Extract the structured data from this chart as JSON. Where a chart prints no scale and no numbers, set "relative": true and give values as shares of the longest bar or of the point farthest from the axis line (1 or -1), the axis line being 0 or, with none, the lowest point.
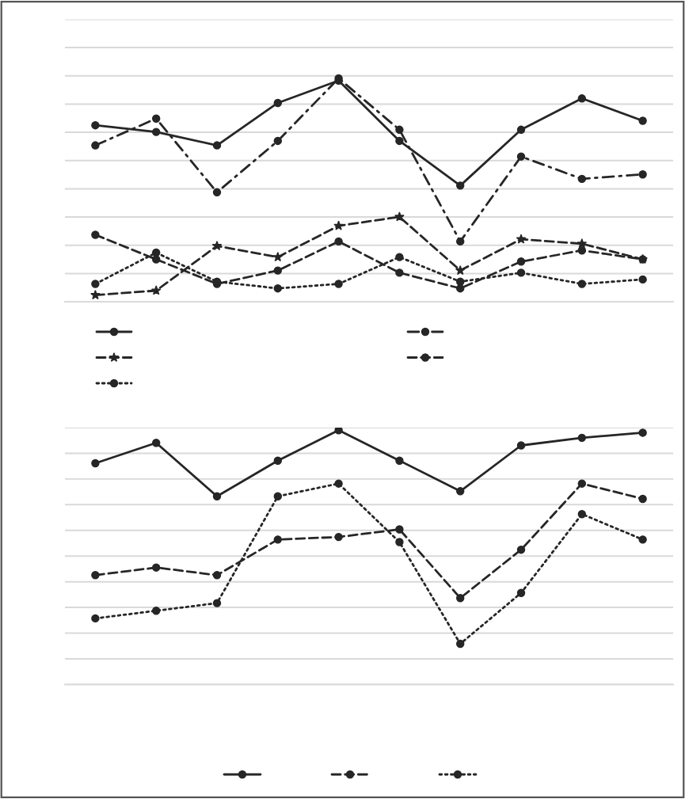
{
  "chart_data": [
    {
      "type": "line",
      "relative": true,
      "grid": "y",
      "tick_labels": false,
      "categories": [
        null,
        null,
        null,
        null,
        null,
        null,
        null,
        null,
        null,
        null
      ],
      "series": [
        {
          "color": "#262626",
          "line_style": "solid",
          "marker": "circle",
          "values": [
            0.79,
            0.76,
            0.7,
            0.89,
            0.99,
            0.72,
            0.52,
            0.77,
            0.91,
            0.81
          ]
        },
        {
          "color": "#262626",
          "line_style": "dashdot",
          "marker": "circle",
          "values": [
            0.7,
            0.82,
            0.49,
            0.72,
            1.0,
            0.77,
            0.27,
            0.65,
            0.55,
            0.57
          ]
        },
        {
          "color": "#262626",
          "line_style": "dashed",
          "marker": "star",
          "values": [
            0.03,
            0.05,
            0.25,
            0.2,
            0.34,
            0.38,
            0.14,
            0.28,
            0.26,
            0.19
          ]
        },
        {
          "color": "#262626",
          "line_style": "dashed",
          "marker": "circle",
          "values": [
            0.3,
            0.19,
            0.08,
            0.14,
            0.27,
            0.13,
            0.06,
            0.18,
            0.23,
            0.19
          ]
        },
        {
          "color": "#262626",
          "line_style": "dotted",
          "marker": "circle",
          "values": [
            0.08,
            0.22,
            0.09,
            0.06,
            0.08,
            0.2,
            0.09,
            0.13,
            0.08,
            0.1
          ]
        }
      ]
    },
    {
      "type": "line",
      "relative": true,
      "grid": "y",
      "tick_labels": false,
      "categories": [
        null,
        null,
        null,
        null,
        null,
        null,
        null,
        null,
        null,
        null
      ],
      "series": [
        {
          "color": "#262626",
          "line_style": "solid",
          "marker": "circle",
          "values": [
            0.87,
            0.95,
            0.74,
            0.88,
            1.0,
            0.88,
            0.76,
            0.94,
            0.97,
            0.99
          ]
        },
        {
          "color": "#262626",
          "line_style": "dashed",
          "marker": "circle",
          "values": [
            0.43,
            0.46,
            0.43,
            0.57,
            0.58,
            0.61,
            0.34,
            0.53,
            0.79,
            0.73
          ]
        },
        {
          "color": "#262626",
          "line_style": "dotted",
          "marker": "circle",
          "values": [
            0.26,
            0.29,
            0.32,
            0.74,
            0.79,
            0.56,
            0.16,
            0.36,
            0.67,
            0.57
          ]
        }
      ]
    }
  ]
}
